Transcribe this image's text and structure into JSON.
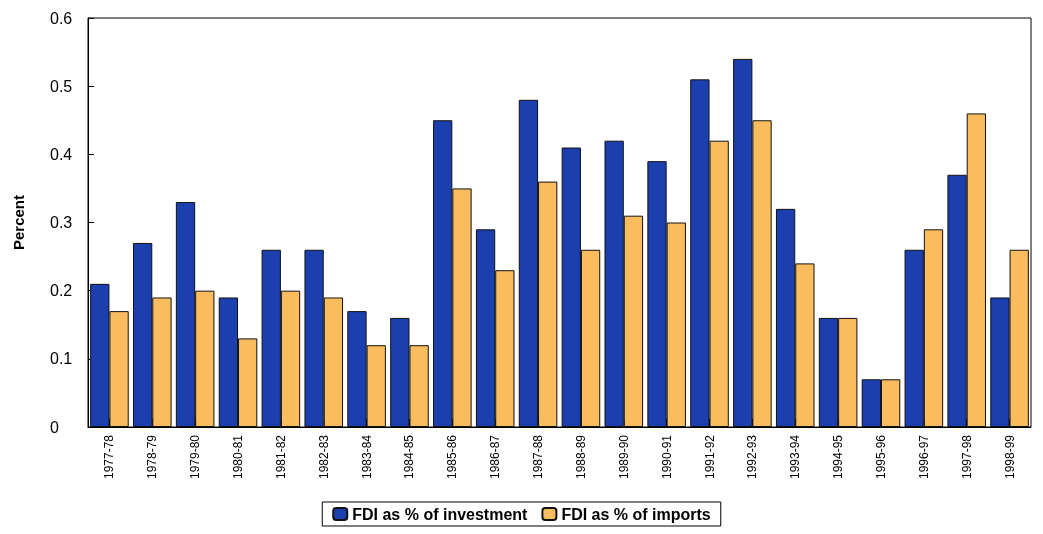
{
  "chart_data": {
    "type": "bar",
    "ylabel": "Percent",
    "categories": [
      "1977-78",
      "1978-79",
      "1979-80",
      "1980-81",
      "1981-82",
      "1982-83",
      "1983-84",
      "1984-85",
      "1985-86",
      "1986-87",
      "1987-88",
      "1988-89",
      "1989-90",
      "1990-91",
      "1991-92",
      "1992-93",
      "1993-94",
      "1994-95",
      "1995-96",
      "1996-97",
      "1997-98",
      "1998-99"
    ],
    "series": [
      {
        "name": "FDI as % of investment",
        "color": "#1c3fb0",
        "values": [
          0.21,
          0.27,
          0.33,
          0.19,
          0.26,
          0.26,
          0.17,
          0.16,
          0.45,
          0.29,
          0.48,
          0.41,
          0.42,
          0.39,
          0.51,
          0.54,
          0.32,
          0.16,
          0.07,
          0.26,
          0.37,
          0.19
        ]
      },
      {
        "name": "FDI as % of imports",
        "color": "#f9bd5f",
        "values": [
          0.17,
          0.19,
          0.2,
          0.13,
          0.2,
          0.19,
          0.12,
          0.12,
          0.35,
          0.23,
          0.36,
          0.26,
          0.31,
          0.3,
          0.42,
          0.45,
          0.24,
          0.16,
          0.07,
          0.29,
          0.46,
          0.26
        ]
      }
    ],
    "ylim": [
      0,
      0.6
    ],
    "yticks": [
      0,
      0.1,
      0.2,
      0.3,
      0.4,
      0.5,
      0.6
    ],
    "grid": false,
    "legend": "bottom"
  }
}
